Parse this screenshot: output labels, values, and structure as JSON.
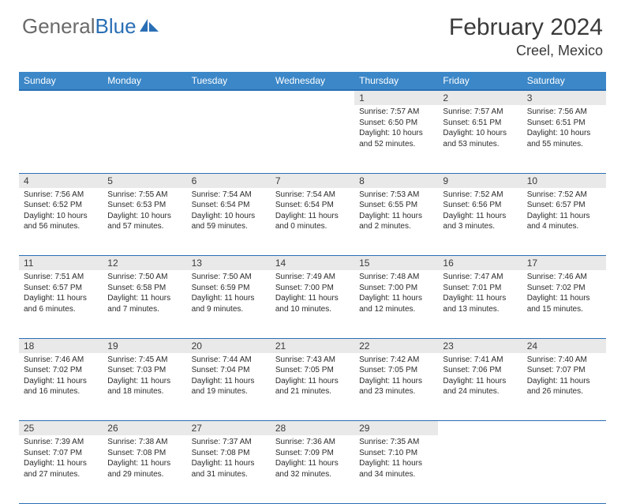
{
  "brand": {
    "part1": "General",
    "part2": "Blue"
  },
  "title": "February 2024",
  "location": "Creel, Mexico",
  "headers": [
    "Sunday",
    "Monday",
    "Tuesday",
    "Wednesday",
    "Thursday",
    "Friday",
    "Saturday"
  ],
  "colors": {
    "header_bg": "#3b87c8",
    "header_border": "#2a6fb5",
    "daynum_bg": "#e9e9e9",
    "row_border": "#2a6fb5",
    "logo_gray": "#6a6a6a",
    "logo_blue": "#2a6fb5"
  },
  "weeks": [
    [
      null,
      null,
      null,
      null,
      {
        "n": "1",
        "sr": "7:57 AM",
        "ss": "6:50 PM",
        "dl": "10 hours and 52 minutes."
      },
      {
        "n": "2",
        "sr": "7:57 AM",
        "ss": "6:51 PM",
        "dl": "10 hours and 53 minutes."
      },
      {
        "n": "3",
        "sr": "7:56 AM",
        "ss": "6:51 PM",
        "dl": "10 hours and 55 minutes."
      }
    ],
    [
      {
        "n": "4",
        "sr": "7:56 AM",
        "ss": "6:52 PM",
        "dl": "10 hours and 56 minutes."
      },
      {
        "n": "5",
        "sr": "7:55 AM",
        "ss": "6:53 PM",
        "dl": "10 hours and 57 minutes."
      },
      {
        "n": "6",
        "sr": "7:54 AM",
        "ss": "6:54 PM",
        "dl": "10 hours and 59 minutes."
      },
      {
        "n": "7",
        "sr": "7:54 AM",
        "ss": "6:54 PM",
        "dl": "11 hours and 0 minutes."
      },
      {
        "n": "8",
        "sr": "7:53 AM",
        "ss": "6:55 PM",
        "dl": "11 hours and 2 minutes."
      },
      {
        "n": "9",
        "sr": "7:52 AM",
        "ss": "6:56 PM",
        "dl": "11 hours and 3 minutes."
      },
      {
        "n": "10",
        "sr": "7:52 AM",
        "ss": "6:57 PM",
        "dl": "11 hours and 4 minutes."
      }
    ],
    [
      {
        "n": "11",
        "sr": "7:51 AM",
        "ss": "6:57 PM",
        "dl": "11 hours and 6 minutes."
      },
      {
        "n": "12",
        "sr": "7:50 AM",
        "ss": "6:58 PM",
        "dl": "11 hours and 7 minutes."
      },
      {
        "n": "13",
        "sr": "7:50 AM",
        "ss": "6:59 PM",
        "dl": "11 hours and 9 minutes."
      },
      {
        "n": "14",
        "sr": "7:49 AM",
        "ss": "7:00 PM",
        "dl": "11 hours and 10 minutes."
      },
      {
        "n": "15",
        "sr": "7:48 AM",
        "ss": "7:00 PM",
        "dl": "11 hours and 12 minutes."
      },
      {
        "n": "16",
        "sr": "7:47 AM",
        "ss": "7:01 PM",
        "dl": "11 hours and 13 minutes."
      },
      {
        "n": "17",
        "sr": "7:46 AM",
        "ss": "7:02 PM",
        "dl": "11 hours and 15 minutes."
      }
    ],
    [
      {
        "n": "18",
        "sr": "7:46 AM",
        "ss": "7:02 PM",
        "dl": "11 hours and 16 minutes."
      },
      {
        "n": "19",
        "sr": "7:45 AM",
        "ss": "7:03 PM",
        "dl": "11 hours and 18 minutes."
      },
      {
        "n": "20",
        "sr": "7:44 AM",
        "ss": "7:04 PM",
        "dl": "11 hours and 19 minutes."
      },
      {
        "n": "21",
        "sr": "7:43 AM",
        "ss": "7:05 PM",
        "dl": "11 hours and 21 minutes."
      },
      {
        "n": "22",
        "sr": "7:42 AM",
        "ss": "7:05 PM",
        "dl": "11 hours and 23 minutes."
      },
      {
        "n": "23",
        "sr": "7:41 AM",
        "ss": "7:06 PM",
        "dl": "11 hours and 24 minutes."
      },
      {
        "n": "24",
        "sr": "7:40 AM",
        "ss": "7:07 PM",
        "dl": "11 hours and 26 minutes."
      }
    ],
    [
      {
        "n": "25",
        "sr": "7:39 AM",
        "ss": "7:07 PM",
        "dl": "11 hours and 27 minutes."
      },
      {
        "n": "26",
        "sr": "7:38 AM",
        "ss": "7:08 PM",
        "dl": "11 hours and 29 minutes."
      },
      {
        "n": "27",
        "sr": "7:37 AM",
        "ss": "7:08 PM",
        "dl": "11 hours and 31 minutes."
      },
      {
        "n": "28",
        "sr": "7:36 AM",
        "ss": "7:09 PM",
        "dl": "11 hours and 32 minutes."
      },
      {
        "n": "29",
        "sr": "7:35 AM",
        "ss": "7:10 PM",
        "dl": "11 hours and 34 minutes."
      },
      null,
      null
    ]
  ],
  "labels": {
    "sunrise": "Sunrise: ",
    "sunset": "Sunset: ",
    "daylight": "Daylight: "
  }
}
